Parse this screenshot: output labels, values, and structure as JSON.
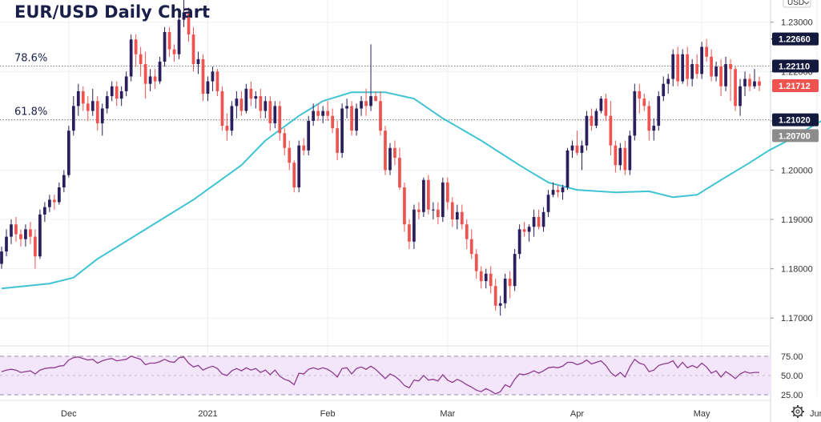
{
  "chart_data": {
    "type": "candlestick",
    "title": "EUR/USD Daily Chart",
    "currency": "USD",
    "ylim": [
      1.165,
      1.2345
    ],
    "y_ticks": [
      "1.23000",
      "1.22000",
      "1.21000",
      "1.20000",
      "1.19000",
      "1.18000",
      "1.17000"
    ],
    "x_ticks": [
      "Dec",
      "2021",
      "Feb",
      "Mar",
      "Apr",
      "May",
      "Jun"
    ],
    "x_tick_index": [
      14,
      43,
      68,
      93,
      120,
      146,
      170
    ],
    "fib_levels": [
      {
        "label": "78.6%",
        "value": 1.2211
      },
      {
        "label": "61.8%",
        "value": 1.2102
      }
    ],
    "price_tags": [
      {
        "label": "1.22660",
        "value": 1.2266,
        "color": "#131a3e"
      },
      {
        "label": "1.22110",
        "value": 1.2211,
        "color": "#131a3e"
      },
      {
        "label": "1.21712",
        "value": 1.21712,
        "color": "#ef5350"
      },
      {
        "label": "1.21020",
        "value": 1.2102,
        "color": "#131a3e"
      },
      {
        "label": "1.20700",
        "value": 1.207,
        "color": "#8c8c8c"
      }
    ],
    "resistance_line": {
      "value": 1.2266,
      "from_index": 162
    },
    "colors": {
      "up": "#2a1f5c",
      "down": "#ef5350",
      "ma": "#40c4d4",
      "rsi": "#8e3a8e",
      "rsi_band": "#f3e6fb"
    },
    "candles": [
      [
        1.181,
        1.1845,
        1.18,
        1.1835
      ],
      [
        1.1835,
        1.188,
        1.1825,
        1.1865
      ],
      [
        1.1865,
        1.19,
        1.185,
        1.189
      ],
      [
        1.189,
        1.1905,
        1.1855,
        1.187
      ],
      [
        1.187,
        1.188,
        1.1845,
        1.186
      ],
      [
        1.186,
        1.189,
        1.1845,
        1.188
      ],
      [
        1.188,
        1.1895,
        1.185,
        1.1865
      ],
      [
        1.1865,
        1.188,
        1.18,
        1.1825
      ],
      [
        1.1825,
        1.192,
        1.182,
        1.191
      ],
      [
        1.191,
        1.1935,
        1.1895,
        1.1925
      ],
      [
        1.1925,
        1.195,
        1.1915,
        1.194
      ],
      [
        1.194,
        1.195,
        1.192,
        1.1935
      ],
      [
        1.1935,
        1.1975,
        1.193,
        1.1965
      ],
      [
        1.1965,
        1.2,
        1.1955,
        1.199
      ],
      [
        1.199,
        1.209,
        1.1985,
        1.208
      ],
      [
        1.208,
        1.215,
        1.207,
        1.213
      ],
      [
        1.213,
        1.2175,
        1.211,
        1.216
      ],
      [
        1.216,
        1.217,
        1.212,
        1.2135
      ],
      [
        1.2135,
        1.215,
        1.21,
        1.212
      ],
      [
        1.212,
        1.2165,
        1.211,
        1.214
      ],
      [
        1.214,
        1.215,
        1.208,
        1.2095
      ],
      [
        1.2095,
        1.2135,
        1.207,
        1.2125
      ],
      [
        1.2125,
        1.216,
        1.2115,
        1.215
      ],
      [
        1.215,
        1.218,
        1.214,
        1.217
      ],
      [
        1.217,
        1.218,
        1.213,
        1.2145
      ],
      [
        1.2145,
        1.217,
        1.213,
        1.216
      ],
      [
        1.216,
        1.22,
        1.215,
        1.219
      ],
      [
        1.219,
        1.2275,
        1.218,
        1.2265
      ],
      [
        1.2265,
        1.2275,
        1.221,
        1.2235
      ],
      [
        1.2235,
        1.225,
        1.219,
        1.2215
      ],
      [
        1.2215,
        1.224,
        1.2145,
        1.2175
      ],
      [
        1.2175,
        1.2205,
        1.216,
        1.219
      ],
      [
        1.219,
        1.2205,
        1.2165,
        1.218
      ],
      [
        1.218,
        1.223,
        1.2175,
        1.222
      ],
      [
        1.222,
        1.229,
        1.221,
        1.228
      ],
      [
        1.228,
        1.229,
        1.223,
        1.2245
      ],
      [
        1.2245,
        1.2255,
        1.222,
        1.2235
      ],
      [
        1.2235,
        1.232,
        1.2225,
        1.2305
      ],
      [
        1.2305,
        1.2345,
        1.229,
        1.232
      ],
      [
        1.232,
        1.233,
        1.226,
        1.2275
      ],
      [
        1.2275,
        1.229,
        1.22,
        1.2215
      ],
      [
        1.2215,
        1.224,
        1.2195,
        1.2225
      ],
      [
        1.2225,
        1.2235,
        1.214,
        1.2155
      ],
      [
        1.2155,
        1.219,
        1.214,
        1.218
      ],
      [
        1.218,
        1.221,
        1.216,
        1.22
      ],
      [
        1.22,
        1.2205,
        1.215,
        1.216
      ],
      [
        1.216,
        1.217,
        1.208,
        1.209
      ],
      [
        1.209,
        1.2115,
        1.206,
        1.208
      ],
      [
        1.208,
        1.214,
        1.207,
        1.213
      ],
      [
        1.213,
        1.216,
        1.2105,
        1.2145
      ],
      [
        1.2145,
        1.216,
        1.211,
        1.212
      ],
      [
        1.212,
        1.2175,
        1.2115,
        1.2165
      ],
      [
        1.2165,
        1.218,
        1.213,
        1.2145
      ],
      [
        1.2145,
        1.216,
        1.2125,
        1.215
      ],
      [
        1.215,
        1.2165,
        1.2105,
        1.212
      ],
      [
        1.212,
        1.215,
        1.2105,
        1.214
      ],
      [
        1.214,
        1.215,
        1.208,
        1.2095
      ],
      [
        1.2095,
        1.214,
        1.2085,
        1.213
      ],
      [
        1.213,
        1.214,
        1.206,
        1.2075
      ],
      [
        1.2075,
        1.2085,
        1.203,
        1.2045
      ],
      [
        1.2045,
        1.206,
        1.2,
        1.2015
      ],
      [
        1.2015,
        1.202,
        1.1955,
        1.1965
      ],
      [
        1.1965,
        1.206,
        1.1955,
        1.205
      ],
      [
        1.205,
        1.2065,
        1.203,
        1.204
      ],
      [
        1.204,
        1.211,
        1.203,
        1.21
      ],
      [
        1.21,
        1.2135,
        1.209,
        1.212
      ],
      [
        1.212,
        1.2135,
        1.21,
        1.211
      ],
      [
        1.211,
        1.213,
        1.2095,
        1.212
      ],
      [
        1.212,
        1.214,
        1.21,
        1.211
      ],
      [
        1.211,
        1.2125,
        1.2075,
        1.2085
      ],
      [
        1.2085,
        1.21,
        1.202,
        1.2035
      ],
      [
        1.2035,
        1.2135,
        1.2025,
        1.2125
      ],
      [
        1.2125,
        1.2145,
        1.2105,
        1.213
      ],
      [
        1.213,
        1.214,
        1.207,
        1.208
      ],
      [
        1.208,
        1.2135,
        1.207,
        1.2125
      ],
      [
        1.2125,
        1.215,
        1.211,
        1.214
      ],
      [
        1.214,
        1.2165,
        1.211,
        1.213
      ],
      [
        1.213,
        1.2255,
        1.212,
        1.215
      ],
      [
        1.215,
        1.216,
        1.214,
        1.214
      ],
      [
        1.214,
        1.216,
        1.207,
        1.208
      ],
      [
        1.208,
        1.209,
        1.199,
        1.2
      ],
      [
        1.2,
        1.2055,
        1.199,
        1.2045
      ],
      [
        1.2045,
        1.206,
        1.201,
        1.2025
      ],
      [
        1.2025,
        1.2045,
        1.196,
        1.1965
      ],
      [
        1.1965,
        1.1975,
        1.1875,
        1.189
      ],
      [
        1.189,
        1.19,
        1.184,
        1.1855
      ],
      [
        1.1855,
        1.193,
        1.184,
        1.192
      ],
      [
        1.192,
        1.1935,
        1.19,
        1.1915
      ],
      [
        1.1915,
        1.1985,
        1.1905,
        1.198
      ],
      [
        1.198,
        1.199,
        1.191,
        1.192
      ],
      [
        1.192,
        1.1935,
        1.19,
        1.192
      ],
      [
        1.192,
        1.1935,
        1.189,
        1.1905
      ],
      [
        1.1905,
        1.1985,
        1.1895,
        1.1975
      ],
      [
        1.1975,
        1.1985,
        1.192,
        1.1935
      ],
      [
        1.1935,
        1.1945,
        1.1885,
        1.19
      ],
      [
        1.19,
        1.193,
        1.188,
        1.1915
      ],
      [
        1.1915,
        1.193,
        1.188,
        1.189
      ],
      [
        1.189,
        1.19,
        1.184,
        1.186
      ],
      [
        1.186,
        1.188,
        1.182,
        1.183
      ],
      [
        1.183,
        1.184,
        1.178,
        1.1795
      ],
      [
        1.1795,
        1.1805,
        1.176,
        1.1775
      ],
      [
        1.1775,
        1.18,
        1.176,
        1.179
      ],
      [
        1.179,
        1.1805,
        1.175,
        1.1765
      ],
      [
        1.1765,
        1.178,
        1.1715,
        1.1725
      ],
      [
        1.1725,
        1.1745,
        1.1705,
        1.173
      ],
      [
        1.173,
        1.179,
        1.172,
        1.178
      ],
      [
        1.178,
        1.1795,
        1.174,
        1.1765
      ],
      [
        1.1765,
        1.184,
        1.1755,
        1.183
      ],
      [
        1.183,
        1.189,
        1.182,
        1.188
      ],
      [
        1.188,
        1.1895,
        1.1865,
        1.1875
      ],
      [
        1.1875,
        1.189,
        1.1855,
        1.1885
      ],
      [
        1.1885,
        1.192,
        1.1865,
        1.1905
      ],
      [
        1.1905,
        1.192,
        1.188,
        1.1885
      ],
      [
        1.1885,
        1.1925,
        1.1875,
        1.1915
      ],
      [
        1.1915,
        1.196,
        1.1905,
        1.195
      ],
      [
        1.195,
        1.1975,
        1.1945,
        1.196
      ],
      [
        1.196,
        1.197,
        1.1945,
        1.1955
      ],
      [
        1.1955,
        1.197,
        1.194,
        1.1965
      ],
      [
        1.1965,
        1.2045,
        1.196,
        1.204
      ],
      [
        1.204,
        1.206,
        1.2025,
        1.205
      ],
      [
        1.205,
        1.208,
        1.203,
        1.2035
      ],
      [
        1.2035,
        1.206,
        1.2,
        1.205
      ],
      [
        1.205,
        1.212,
        1.204,
        1.211
      ],
      [
        1.211,
        1.2125,
        1.208,
        1.209
      ],
      [
        1.209,
        1.2125,
        1.2085,
        1.212
      ],
      [
        1.212,
        1.215,
        1.2115,
        1.2145
      ],
      [
        1.2145,
        1.2155,
        1.21,
        1.211
      ],
      [
        1.211,
        1.214,
        1.203,
        1.205
      ],
      [
        1.205,
        1.206,
        1.1995,
        1.201
      ],
      [
        1.201,
        1.2055,
        1.2,
        1.2045
      ],
      [
        1.2045,
        1.206,
        1.199,
        1.2
      ],
      [
        1.2,
        1.208,
        1.199,
        1.207
      ],
      [
        1.207,
        1.2175,
        1.206,
        1.216
      ],
      [
        1.216,
        1.2175,
        1.2115,
        1.2145
      ],
      [
        1.2145,
        1.2155,
        1.212,
        1.213
      ],
      [
        1.213,
        1.214,
        1.206,
        1.208
      ],
      [
        1.208,
        1.2105,
        1.206,
        1.209
      ],
      [
        1.209,
        1.216,
        1.208,
        1.215
      ],
      [
        1.215,
        1.219,
        1.214,
        1.2175
      ],
      [
        1.2175,
        1.2195,
        1.2155,
        1.2185
      ],
      [
        1.2185,
        1.2245,
        1.217,
        1.2235
      ],
      [
        1.2235,
        1.225,
        1.217,
        1.218
      ],
      [
        1.218,
        1.2245,
        1.2175,
        1.2235
      ],
      [
        1.2235,
        1.225,
        1.217,
        1.2185
      ],
      [
        1.2185,
        1.2225,
        1.217,
        1.2215
      ],
      [
        1.2215,
        1.2235,
        1.2185,
        1.2195
      ],
      [
        1.2195,
        1.226,
        1.2185,
        1.225
      ],
      [
        1.225,
        1.2266,
        1.222,
        1.223
      ],
      [
        1.223,
        1.2245,
        1.218,
        1.219
      ],
      [
        1.219,
        1.222,
        1.218,
        1.221
      ],
      [
        1.221,
        1.2225,
        1.215,
        1.217
      ],
      [
        1.217,
        1.223,
        1.216,
        1.2215
      ],
      [
        1.2215,
        1.2225,
        1.214,
        1.2205
      ],
      [
        1.2205,
        1.221,
        1.212,
        1.213
      ],
      [
        1.213,
        1.2185,
        1.211,
        1.217
      ],
      [
        1.217,
        1.22,
        1.215,
        1.2185
      ],
      [
        1.2185,
        1.2195,
        1.216,
        1.217
      ],
      [
        1.217,
        1.2205,
        1.2165,
        1.218
      ],
      [
        1.218,
        1.219,
        1.216,
        1.2171
      ]
    ],
    "ma_points": [
      [
        0,
        1.176
      ],
      [
        10,
        1.177
      ],
      [
        15,
        1.1782
      ],
      [
        20,
        1.182
      ],
      [
        30,
        1.188
      ],
      [
        40,
        1.194
      ],
      [
        50,
        1.201
      ],
      [
        55,
        1.206
      ],
      [
        62,
        1.211
      ],
      [
        67,
        1.214
      ],
      [
        73,
        1.2158
      ],
      [
        80,
        1.2158
      ],
      [
        86,
        1.2145
      ],
      [
        92,
        1.2105
      ],
      [
        100,
        1.206
      ],
      [
        108,
        1.201
      ],
      [
        114,
        1.1975
      ],
      [
        120,
        1.196
      ],
      [
        128,
        1.1955
      ],
      [
        135,
        1.1957
      ],
      [
        140,
        1.1945
      ],
      [
        145,
        1.195
      ],
      [
        150,
        1.198
      ],
      [
        156,
        1.2015
      ],
      [
        160,
        1.204
      ],
      [
        165,
        1.2065
      ],
      [
        170,
        1.2095
      ],
      [
        173,
        1.211
      ]
    ],
    "rsi": {
      "ticks": [
        "75.00",
        "50.00",
        "25.00"
      ],
      "ylim": [
        25,
        80
      ],
      "values": [
        55,
        57,
        58,
        57,
        54,
        55,
        56,
        52,
        57,
        59,
        60,
        60,
        62,
        63,
        70,
        73,
        74,
        72,
        70,
        71,
        66,
        69,
        71,
        72,
        69,
        70,
        71,
        75,
        73,
        71,
        64,
        66,
        66,
        68,
        71,
        68,
        67,
        73,
        74,
        66,
        61,
        63,
        57,
        60,
        62,
        59,
        52,
        50,
        56,
        59,
        56,
        60,
        57,
        59,
        54,
        57,
        51,
        57,
        49,
        45,
        43,
        38,
        53,
        52,
        58,
        60,
        58,
        60,
        58,
        54,
        48,
        59,
        60,
        52,
        59,
        61,
        58,
        62,
        58,
        52,
        46,
        52,
        49,
        44,
        37,
        34,
        44,
        43,
        50,
        44,
        45,
        43,
        51,
        44,
        41,
        45,
        42,
        38,
        35,
        31,
        29,
        33,
        30,
        26,
        29,
        38,
        35,
        45,
        52,
        51,
        53,
        56,
        53,
        56,
        60,
        61,
        60,
        62,
        67,
        67,
        64,
        66,
        70,
        65,
        67,
        69,
        63,
        54,
        49,
        54,
        48,
        61,
        71,
        66,
        64,
        55,
        57,
        63,
        65,
        66,
        69,
        60,
        67,
        60,
        63,
        60,
        66,
        61,
        53,
        56,
        48,
        55,
        51,
        46,
        52,
        55,
        53,
        54,
        54
      ]
    }
  }
}
